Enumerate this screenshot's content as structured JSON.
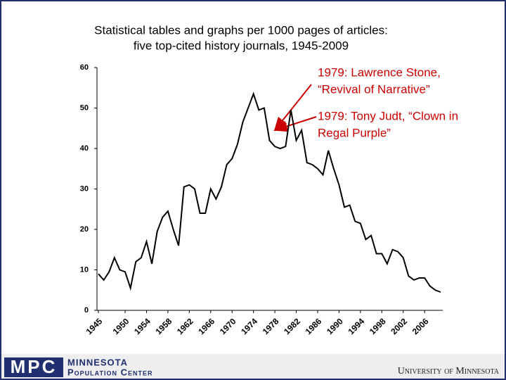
{
  "chart_data": {
    "type": "line",
    "title": [
      "Statistical tables and graphs per 1000 pages of articles:",
      "five top-cited history journals, 1945-2009"
    ],
    "x": [
      1945,
      1946,
      1947,
      1948,
      1949,
      1950,
      1951,
      1952,
      1953,
      1954,
      1955,
      1956,
      1957,
      1958,
      1959,
      1960,
      1961,
      1962,
      1963,
      1964,
      1965,
      1966,
      1967,
      1968,
      1969,
      1970,
      1971,
      1972,
      1973,
      1974,
      1975,
      1976,
      1977,
      1978,
      1979,
      1980,
      1981,
      1982,
      1983,
      1984,
      1985,
      1986,
      1987,
      1988,
      1989,
      1990,
      1991,
      1992,
      1993,
      1994,
      1995,
      1996,
      1997,
      1998,
      1999,
      2000,
      2001,
      2002,
      2003,
      2004,
      2005,
      2006,
      2007,
      2008,
      2009
    ],
    "series": [
      {
        "name": null,
        "color": "#000000",
        "values": [
          9,
          7.5,
          9.5,
          13,
          10,
          9.5,
          5.5,
          12,
          13,
          17,
          11.5,
          19.5,
          23,
          24.5,
          20,
          16,
          30.5,
          31,
          30,
          24,
          24,
          30,
          27.5,
          30.5,
          36,
          37.5,
          41,
          46.5,
          50,
          53.5,
          49.5,
          50,
          42,
          40.5,
          40,
          40.5,
          49.5,
          42,
          44.5,
          36.5,
          36,
          35,
          33.5,
          39.5,
          35,
          31,
          25.5,
          26,
          22,
          21.5,
          17.5,
          18.5,
          14,
          14,
          11.5,
          15,
          14.5,
          13,
          8.5,
          7.5,
          8,
          8,
          6,
          5,
          4.5
        ]
      }
    ],
    "xlim": [
      1945,
      2009
    ],
    "xticks": [
      1945,
      1950,
      1954,
      1958,
      1962,
      1966,
      1970,
      1974,
      1978,
      1982,
      1986,
      1990,
      1994,
      1998,
      2002,
      2006
    ],
    "ylim": [
      0,
      60
    ],
    "yticks": [
      0,
      10,
      20,
      30,
      40,
      50,
      60
    ],
    "annotations": [
      {
        "text": [
          "1979: Lawrence Stone,",
          "“Revival of Narrative”"
        ],
        "color": "#cc0000"
      },
      {
        "text": [
          "1979: Tony Judt, “Clown in",
          "Regal Purple”"
        ],
        "color": "#cc0000"
      }
    ]
  },
  "footer": {
    "logo": "MPC",
    "org": [
      "Minnesota",
      "Population Center"
    ],
    "university": "University of Minnesota"
  }
}
